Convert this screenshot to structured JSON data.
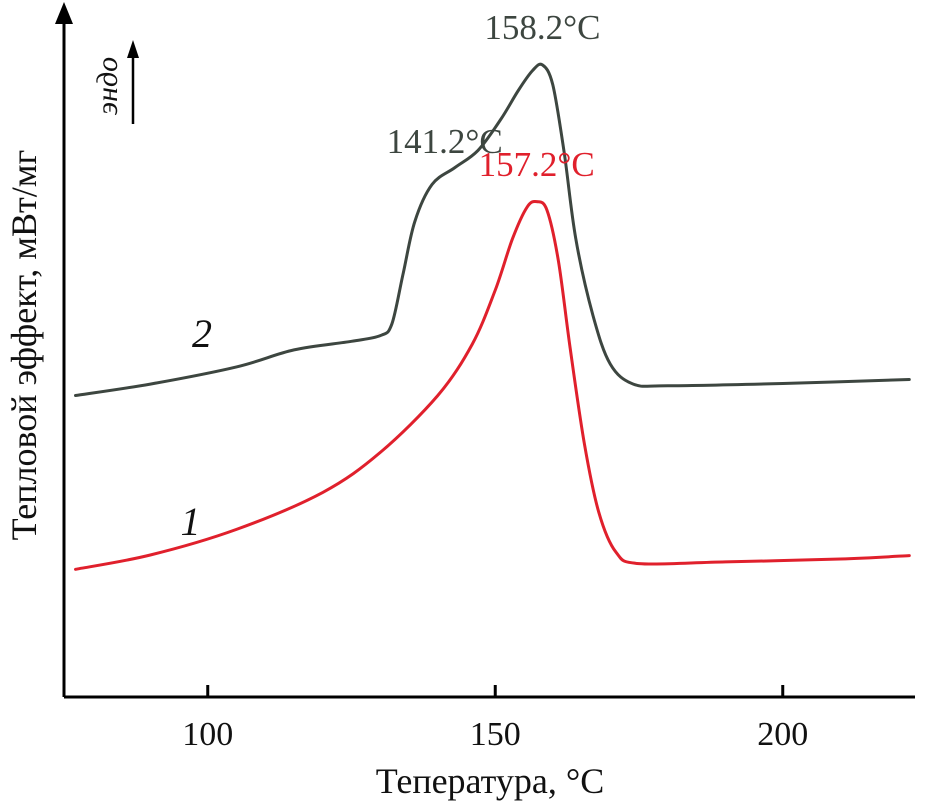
{
  "chart_data": {
    "type": "line",
    "title": "",
    "xlabel": "Тепература, °C",
    "ylabel": "Тепловой эффект, мВт/мг",
    "xlim": [
      75,
      223
    ],
    "ylim": [
      0,
      100
    ],
    "xticks": [
      100,
      150,
      200
    ],
    "xtick_labels": [
      "100",
      "150",
      "200"
    ],
    "yticks": [],
    "grid": false,
    "legend": "none",
    "endo_indicator": "эндо",
    "colors": {
      "curve1": "#e0202c",
      "curve2": "#3d4640",
      "axis": "#000000"
    },
    "series": [
      {
        "name": "1",
        "color": "#e0202c",
        "points": [
          [
            77,
            11
          ],
          [
            90,
            13.5
          ],
          [
            105,
            18
          ],
          [
            120,
            24.5
          ],
          [
            130,
            31.5
          ],
          [
            140,
            41.5
          ],
          [
            146,
            50.5
          ],
          [
            150,
            60
          ],
          [
            153,
            69
          ],
          [
            155.5,
            74.5
          ],
          [
            157.2,
            75.5
          ],
          [
            159,
            74
          ],
          [
            161,
            65
          ],
          [
            163,
            50
          ],
          [
            165.5,
            33
          ],
          [
            168,
            21
          ],
          [
            171,
            14
          ],
          [
            175,
            12
          ],
          [
            190,
            12.3
          ],
          [
            210,
            12.8
          ],
          [
            222,
            13.4
          ]
        ]
      },
      {
        "name": "2",
        "color": "#3d4640",
        "points": [
          [
            77,
            41.5
          ],
          [
            90,
            43.5
          ],
          [
            105,
            46.5
          ],
          [
            115,
            49.5
          ],
          [
            125,
            51
          ],
          [
            130,
            52
          ],
          [
            132,
            54
          ],
          [
            134,
            63
          ],
          [
            136,
            72
          ],
          [
            139,
            78.5
          ],
          [
            143,
            81.5
          ],
          [
            147,
            84.5
          ],
          [
            151,
            90
          ],
          [
            154,
            95
          ],
          [
            156.5,
            98.5
          ],
          [
            158.2,
            99.5
          ],
          [
            160,
            96
          ],
          [
            162,
            84
          ],
          [
            164,
            69
          ],
          [
            167,
            55.5
          ],
          [
            170,
            47
          ],
          [
            174,
            43.5
          ],
          [
            180,
            43.2
          ],
          [
            200,
            43.6
          ],
          [
            222,
            44.3
          ]
        ]
      }
    ],
    "annotations": [
      {
        "text": "158.2°C",
        "x": 158.2,
        "y": 104,
        "series": "2"
      },
      {
        "text": "141.2°C",
        "x": 141.2,
        "y": 84,
        "series": "2"
      },
      {
        "text": "157.2°C",
        "x": 157.2,
        "y": 80,
        "series": "1"
      }
    ],
    "curve_labels": [
      {
        "text": "2",
        "x": 99,
        "y": 50,
        "series": "2"
      },
      {
        "text": "1",
        "x": 97,
        "y": 17,
        "series": "1"
      }
    ]
  }
}
